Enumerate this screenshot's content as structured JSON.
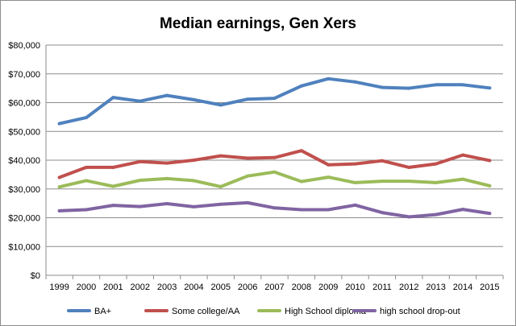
{
  "chart_data": {
    "type": "line",
    "title": "Median earnings, Gen Xers",
    "xlabel": "",
    "ylabel": "",
    "categories": [
      "1999",
      "2000",
      "2001",
      "2002",
      "2003",
      "2004",
      "2005",
      "2006",
      "2007",
      "2008",
      "2009",
      "2010",
      "2011",
      "2012",
      "2013",
      "2014",
      "2015"
    ],
    "y_ticks": [
      "$0",
      "$10,000",
      "$20,000",
      "$30,000",
      "$40,000",
      "$50,000",
      "$60,000",
      "$70,000",
      "$80,000"
    ],
    "ylim": [
      0,
      80000
    ],
    "grid": true,
    "legend_position": "bottom",
    "series": [
      {
        "name": "BA+",
        "color": "#4f81bd",
        "values": [
          52700,
          54800,
          61800,
          60500,
          62500,
          61000,
          59200,
          61200,
          61500,
          65800,
          68300,
          67200,
          65300,
          65000,
          66200,
          66200,
          65100
        ]
      },
      {
        "name": "Some college/AA",
        "color": "#c0504d",
        "values": [
          34000,
          37500,
          37500,
          39500,
          39000,
          40000,
          41500,
          40700,
          40900,
          43300,
          38400,
          38700,
          39800,
          37500,
          38700,
          41800,
          39900
        ]
      },
      {
        "name": "High School diploma",
        "color": "#9bbb59",
        "values": [
          30700,
          32900,
          30900,
          33000,
          33600,
          32900,
          30800,
          34500,
          35900,
          32600,
          34100,
          32200,
          32700,
          32700,
          32200,
          33400,
          31100
        ]
      },
      {
        "name": "high school drop-out",
        "color": "#8064a2",
        "values": [
          22400,
          22800,
          24300,
          23900,
          24900,
          23800,
          24700,
          25200,
          23400,
          22800,
          22800,
          24400,
          21800,
          20300,
          21100,
          22900,
          21500
        ]
      }
    ]
  }
}
